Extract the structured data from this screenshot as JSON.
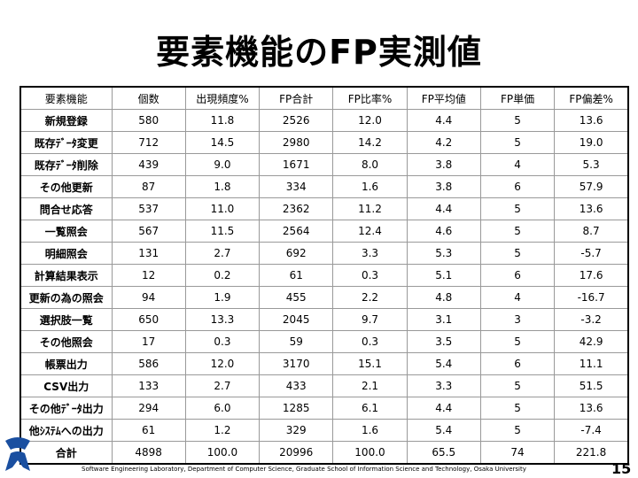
{
  "title": "要素機能のFP実測値",
  "table": {
    "header": [
      "要素機能",
      "個数",
      "出現頻度%",
      "FP合計",
      "FP比率%",
      "FP平均値",
      "FP単価",
      "FP偏差%"
    ],
    "rows": [
      [
        "新規登録",
        "580",
        "11.8",
        "2526",
        "12.0",
        "4.4",
        "5",
        "13.6"
      ],
      [
        "既存ﾃﾞｰﾀ変更",
        "712",
        "14.5",
        "2980",
        "14.2",
        "4.2",
        "5",
        "19.0"
      ],
      [
        "既存ﾃﾞｰﾀ削除",
        "439",
        "9.0",
        "1671",
        "8.0",
        "3.8",
        "4",
        "5.3"
      ],
      [
        "その他更新",
        "87",
        "1.8",
        "334",
        "1.6",
        "3.8",
        "6",
        "57.9"
      ],
      [
        "問合せ応答",
        "537",
        "11.0",
        "2362",
        "11.2",
        "4.4",
        "5",
        "13.6"
      ],
      [
        "一覧照会",
        "567",
        "11.5",
        "2564",
        "12.4",
        "4.6",
        "5",
        "8.7"
      ],
      [
        "明細照会",
        "131",
        "2.7",
        "692",
        "3.3",
        "5.3",
        "5",
        "-5.7"
      ],
      [
        "計算結果表示",
        "12",
        "0.2",
        "61",
        "0.3",
        "5.1",
        "6",
        "17.6"
      ],
      [
        "更新の為の照会",
        "94",
        "1.9",
        "455",
        "2.2",
        "4.8",
        "4",
        "-16.7"
      ],
      [
        "選択肢一覧",
        "650",
        "13.3",
        "2045",
        "9.7",
        "3.1",
        "3",
        "-3.2"
      ],
      [
        "その他照会",
        "17",
        "0.3",
        "59",
        "0.3",
        "3.5",
        "5",
        "42.9"
      ],
      [
        "帳票出力",
        "586",
        "12.0",
        "3170",
        "15.1",
        "5.4",
        "6",
        "11.1"
      ],
      [
        "CSV出力",
        "133",
        "2.7",
        "433",
        "2.1",
        "3.3",
        "5",
        "51.5"
      ],
      [
        "その他ﾃﾞｰﾀ出力",
        "294",
        "6.0",
        "1285",
        "6.1",
        "4.4",
        "5",
        "13.6"
      ],
      [
        "他ｼｽﾃﾑへの出力",
        "61",
        "1.2",
        "329",
        "1.6",
        "5.4",
        "5",
        "-7.4"
      ],
      [
        "合計",
        "4898",
        "100.0",
        "20996",
        "100.0",
        "65.5",
        "74",
        "221.8"
      ]
    ]
  },
  "footer": "Software Engineering Laboratory, Department of Computer Science, Graduate School of Information Science and Technology, Osaka University",
  "page_number": "15"
}
